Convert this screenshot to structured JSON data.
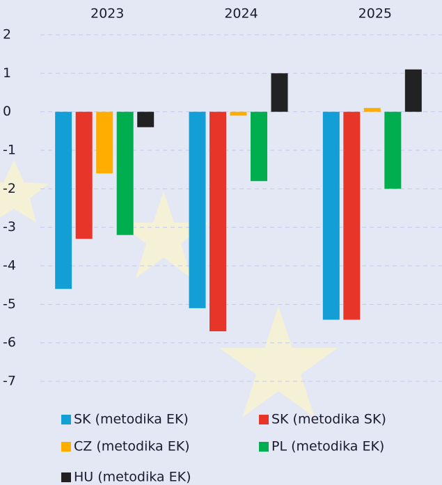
{
  "chart_data": {
    "type": "bar",
    "categories": [
      "2023",
      "2024",
      "2025"
    ],
    "series": [
      {
        "name": "SK (metodika EK)",
        "color": "#139fd6",
        "values": [
          -4.6,
          -5.1,
          -5.4
        ]
      },
      {
        "name": "SK (metodika SK)",
        "color": "#e8352a",
        "values": [
          -3.3,
          -5.7,
          -5.4
        ]
      },
      {
        "name": "CZ (metodika EK)",
        "color": "#ffad00",
        "values": [
          -1.6,
          -0.1,
          0.1
        ]
      },
      {
        "name": "PL (metodika EK)",
        "color": "#00ad4f",
        "values": [
          -3.2,
          -1.8,
          -2.0
        ]
      },
      {
        "name": "HU (metodika EK)",
        "color": "#222222",
        "values": [
          -0.4,
          1.0,
          1.1
        ]
      }
    ],
    "ylim": [
      -7.5,
      2.2
    ],
    "yticks": [
      2,
      1,
      0,
      -1,
      -2,
      -3,
      -4,
      -5,
      -6,
      -7
    ],
    "grid": true
  }
}
